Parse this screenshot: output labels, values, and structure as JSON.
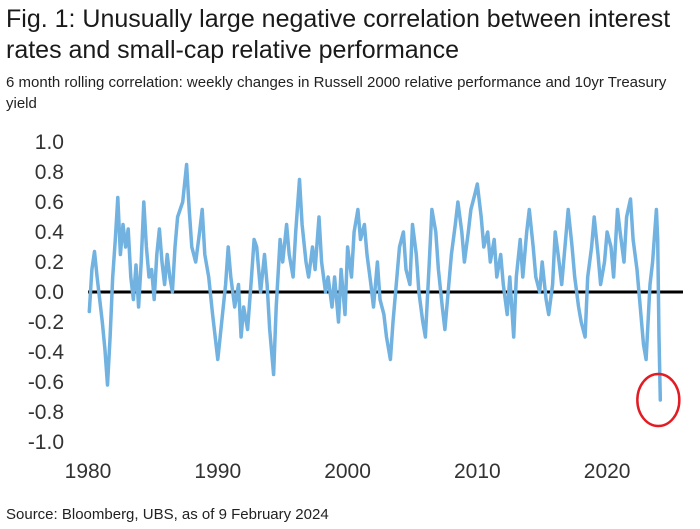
{
  "header": {
    "title": "Fig. 1: Unusually large negative correlation between interest rates and small-cap relative performance",
    "subtitle": "6 month rolling correlation: weekly changes in Russell 2000 relative performance and 10yr Treasury yield"
  },
  "footer": {
    "source": "Source: Bloomberg, UBS, as of 9 February 2024"
  },
  "chart_data": {
    "type": "line",
    "title": "",
    "xlabel": "",
    "ylabel": "",
    "xlim": [
      1980,
      2026
    ],
    "ylim": [
      -1.0,
      1.0
    ],
    "x_ticks": [
      1980,
      1990,
      2000,
      2010,
      2020
    ],
    "x_tick_labels": [
      "1980",
      "1990",
      "2000",
      "2010",
      "2020"
    ],
    "y_ticks": [
      1.0,
      0.8,
      0.6,
      0.4,
      0.2,
      0.0,
      -0.2,
      -0.4,
      -0.6,
      -0.8,
      -1.0
    ],
    "y_tick_labels": [
      "1.0",
      "0.8",
      "0.6",
      "0.4",
      "0.2",
      "0.0",
      "-0.2",
      "-0.4",
      "-0.6",
      "-0.8",
      "-1.0"
    ],
    "grid": false,
    "zero_line": true,
    "series_color": "#71b2e0",
    "zero_line_color": "#000000",
    "highlight_circle_color": "#e31b23",
    "highlight": {
      "x": 2024.1,
      "y": -0.72
    },
    "series": [
      {
        "values": [
          [
            1980.1,
            -0.13
          ],
          [
            1980.3,
            0.15
          ],
          [
            1980.5,
            0.27
          ],
          [
            1980.7,
            0.1
          ],
          [
            1980.9,
            -0.05
          ],
          [
            1981.1,
            -0.2
          ],
          [
            1981.3,
            -0.38
          ],
          [
            1981.5,
            -0.62
          ],
          [
            1981.7,
            -0.3
          ],
          [
            1981.9,
            0.1
          ],
          [
            1982.1,
            0.35
          ],
          [
            1982.3,
            0.63
          ],
          [
            1982.5,
            0.25
          ],
          [
            1982.7,
            0.45
          ],
          [
            1982.9,
            0.3
          ],
          [
            1983.1,
            0.42
          ],
          [
            1983.3,
            0.1
          ],
          [
            1983.5,
            -0.05
          ],
          [
            1983.7,
            0.18
          ],
          [
            1983.9,
            -0.1
          ],
          [
            1984.1,
            0.2
          ],
          [
            1984.3,
            0.6
          ],
          [
            1984.5,
            0.3
          ],
          [
            1984.7,
            0.1
          ],
          [
            1984.9,
            0.15
          ],
          [
            1985.1,
            -0.05
          ],
          [
            1985.3,
            0.25
          ],
          [
            1985.5,
            0.42
          ],
          [
            1985.7,
            0.2
          ],
          [
            1985.9,
            0.05
          ],
          [
            1986.1,
            0.25
          ],
          [
            1986.3,
            0.1
          ],
          [
            1986.5,
            0.0
          ],
          [
            1986.7,
            0.3
          ],
          [
            1986.9,
            0.5
          ],
          [
            1987.3,
            0.6
          ],
          [
            1987.6,
            0.85
          ],
          [
            1987.8,
            0.55
          ],
          [
            1988.0,
            0.3
          ],
          [
            1988.3,
            0.2
          ],
          [
            1988.6,
            0.4
          ],
          [
            1988.8,
            0.55
          ],
          [
            1989.0,
            0.25
          ],
          [
            1989.3,
            0.1
          ],
          [
            1989.6,
            -0.15
          ],
          [
            1989.8,
            -0.3
          ],
          [
            1990.0,
            -0.45
          ],
          [
            1990.3,
            -0.2
          ],
          [
            1990.6,
            0.05
          ],
          [
            1990.8,
            0.3
          ],
          [
            1991.0,
            0.1
          ],
          [
            1991.3,
            -0.1
          ],
          [
            1991.6,
            0.05
          ],
          [
            1991.8,
            -0.3
          ],
          [
            1992.0,
            -0.1
          ],
          [
            1992.3,
            -0.25
          ],
          [
            1992.6,
            0.1
          ],
          [
            1992.8,
            0.35
          ],
          [
            1993.0,
            0.3
          ],
          [
            1993.3,
            0.0
          ],
          [
            1993.6,
            0.25
          ],
          [
            1993.8,
            0.05
          ],
          [
            1994.0,
            -0.25
          ],
          [
            1994.3,
            -0.55
          ],
          [
            1994.5,
            -0.1
          ],
          [
            1994.8,
            0.35
          ],
          [
            1995.0,
            0.2
          ],
          [
            1995.3,
            0.45
          ],
          [
            1995.5,
            0.25
          ],
          [
            1995.8,
            0.1
          ],
          [
            1996.0,
            0.4
          ],
          [
            1996.3,
            0.75
          ],
          [
            1996.5,
            0.45
          ],
          [
            1996.8,
            0.2
          ],
          [
            1997.0,
            0.1
          ],
          [
            1997.3,
            0.3
          ],
          [
            1997.5,
            0.15
          ],
          [
            1997.8,
            0.5
          ],
          [
            1998.0,
            0.2
          ],
          [
            1998.3,
            0.0
          ],
          [
            1998.5,
            0.1
          ],
          [
            1998.8,
            -0.1
          ],
          [
            1999.0,
            0.1
          ],
          [
            1999.3,
            -0.2
          ],
          [
            1999.5,
            0.15
          ],
          [
            1999.8,
            -0.15
          ],
          [
            2000.0,
            0.3
          ],
          [
            2000.3,
            0.1
          ],
          [
            2000.5,
            0.4
          ],
          [
            2000.8,
            0.55
          ],
          [
            2001.0,
            0.35
          ],
          [
            2001.3,
            0.45
          ],
          [
            2001.5,
            0.25
          ],
          [
            2001.8,
            0.05
          ],
          [
            2002.0,
            -0.1
          ],
          [
            2002.3,
            0.2
          ],
          [
            2002.5,
            -0.05
          ],
          [
            2002.8,
            -0.15
          ],
          [
            2003.0,
            -0.3
          ],
          [
            2003.3,
            -0.45
          ],
          [
            2003.5,
            -0.2
          ],
          [
            2003.8,
            0.1
          ],
          [
            2004.0,
            0.3
          ],
          [
            2004.3,
            0.4
          ],
          [
            2004.5,
            0.15
          ],
          [
            2004.8,
            0.05
          ],
          [
            2005.0,
            0.45
          ],
          [
            2005.3,
            0.25
          ],
          [
            2005.5,
            0.0
          ],
          [
            2005.8,
            -0.2
          ],
          [
            2006.0,
            -0.3
          ],
          [
            2006.3,
            0.2
          ],
          [
            2006.5,
            0.55
          ],
          [
            2006.8,
            0.4
          ],
          [
            2007.0,
            0.15
          ],
          [
            2007.3,
            -0.1
          ],
          [
            2007.5,
            -0.25
          ],
          [
            2007.8,
            0.05
          ],
          [
            2008.0,
            0.25
          ],
          [
            2008.3,
            0.45
          ],
          [
            2008.5,
            0.6
          ],
          [
            2008.8,
            0.4
          ],
          [
            2009.0,
            0.2
          ],
          [
            2009.3,
            0.4
          ],
          [
            2009.5,
            0.55
          ],
          [
            2009.8,
            0.65
          ],
          [
            2010.0,
            0.72
          ],
          [
            2010.3,
            0.5
          ],
          [
            2010.5,
            0.3
          ],
          [
            2010.8,
            0.4
          ],
          [
            2011.0,
            0.2
          ],
          [
            2011.3,
            0.35
          ],
          [
            2011.5,
            0.1
          ],
          [
            2011.8,
            0.25
          ],
          [
            2012.0,
            0.05
          ],
          [
            2012.3,
            -0.15
          ],
          [
            2012.5,
            0.1
          ],
          [
            2012.8,
            -0.3
          ],
          [
            2013.0,
            0.1
          ],
          [
            2013.3,
            0.35
          ],
          [
            2013.5,
            0.1
          ],
          [
            2013.8,
            0.4
          ],
          [
            2014.0,
            0.55
          ],
          [
            2014.3,
            0.3
          ],
          [
            2014.5,
            0.1
          ],
          [
            2014.8,
            0.0
          ],
          [
            2015.0,
            0.2
          ],
          [
            2015.3,
            -0.05
          ],
          [
            2015.5,
            -0.15
          ],
          [
            2015.8,
            0.05
          ],
          [
            2016.0,
            0.4
          ],
          [
            2016.3,
            0.2
          ],
          [
            2016.5,
            0.05
          ],
          [
            2016.8,
            0.35
          ],
          [
            2017.0,
            0.55
          ],
          [
            2017.3,
            0.3
          ],
          [
            2017.5,
            0.1
          ],
          [
            2017.8,
            -0.1
          ],
          [
            2018.0,
            -0.2
          ],
          [
            2018.3,
            -0.3
          ],
          [
            2018.5,
            0.1
          ],
          [
            2018.8,
            0.3
          ],
          [
            2019.0,
            0.5
          ],
          [
            2019.3,
            0.25
          ],
          [
            2019.5,
            0.05
          ],
          [
            2019.8,
            0.2
          ],
          [
            2020.0,
            0.4
          ],
          [
            2020.3,
            0.3
          ],
          [
            2020.5,
            0.1
          ],
          [
            2020.8,
            0.55
          ],
          [
            2021.0,
            0.4
          ],
          [
            2021.3,
            0.2
          ],
          [
            2021.5,
            0.5
          ],
          [
            2021.8,
            0.62
          ],
          [
            2022.0,
            0.35
          ],
          [
            2022.3,
            0.15
          ],
          [
            2022.5,
            -0.05
          ],
          [
            2022.8,
            -0.35
          ],
          [
            2023.0,
            -0.45
          ],
          [
            2023.3,
            0.05
          ],
          [
            2023.5,
            0.2
          ],
          [
            2023.8,
            0.55
          ],
          [
            2023.9,
            0.35
          ],
          [
            2024.0,
            -0.3
          ],
          [
            2024.1,
            -0.72
          ]
        ]
      }
    ]
  }
}
